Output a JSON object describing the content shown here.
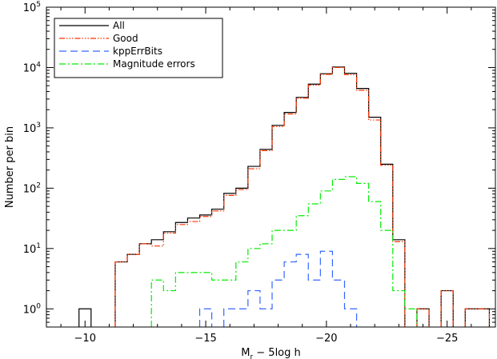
{
  "chart_data": {
    "type": "line",
    "step": true,
    "xlabel": {
      "main": "M",
      "sub": "r",
      "rest": " − 5log h"
    },
    "ylabel": "Number per bin",
    "log_y": true,
    "xlim": [
      -8.4,
      -27
    ],
    "ylim": [
      0.5,
      100000
    ],
    "x_reversed": true,
    "grid": false,
    "legend_position": "top-left",
    "x_tick_values": [
      -10,
      -15,
      -20,
      -25
    ],
    "x_tick_labels": [
      "−10",
      "−15",
      "−20",
      "−25"
    ],
    "y_tick_values": [
      1,
      10,
      100,
      1000,
      10000,
      100000
    ],
    "y_tick_labels": [
      {
        "base": "10",
        "exp": "0"
      },
      {
        "base": "10",
        "exp": "1"
      },
      {
        "base": "10",
        "exp": "2"
      },
      {
        "base": "10",
        "exp": "3"
      },
      {
        "base": "10",
        "exp": "4"
      },
      {
        "base": "10",
        "exp": "5"
      }
    ],
    "bin_width": 0.5,
    "series": [
      {
        "name": "All",
        "color": "#000000",
        "dash": "",
        "bins": [
          [
            -9.75,
            -10.25,
            1
          ],
          [
            -11.25,
            -11.75,
            6
          ],
          [
            -11.75,
            -12.25,
            8
          ],
          [
            -12.25,
            -12.75,
            12
          ],
          [
            -12.75,
            -13.25,
            14
          ],
          [
            -13.25,
            -13.75,
            19
          ],
          [
            -13.75,
            -14.25,
            27
          ],
          [
            -14.25,
            -14.75,
            32
          ],
          [
            -14.75,
            -15.25,
            36
          ],
          [
            -15.25,
            -15.75,
            45
          ],
          [
            -15.75,
            -16.25,
            82
          ],
          [
            -16.25,
            -16.75,
            100
          ],
          [
            -16.75,
            -17.25,
            230
          ],
          [
            -17.25,
            -17.75,
            440
          ],
          [
            -17.75,
            -18.25,
            1100
          ],
          [
            -18.25,
            -18.75,
            1800
          ],
          [
            -18.75,
            -19.25,
            3200
          ],
          [
            -19.25,
            -19.75,
            5300
          ],
          [
            -19.75,
            -20.25,
            7900
          ],
          [
            -20.25,
            -20.75,
            10200
          ],
          [
            -20.75,
            -21.25,
            8000
          ],
          [
            -21.25,
            -21.75,
            4500
          ],
          [
            -21.75,
            -22.25,
            1500
          ],
          [
            -22.25,
            -22.75,
            250
          ],
          [
            -22.75,
            -23.25,
            14
          ],
          [
            -23.75,
            -24.25,
            1
          ],
          [
            -24.75,
            -25.25,
            2
          ],
          [
            -25.75,
            -26.25,
            1
          ],
          [
            -26.25,
            -26.75,
            1
          ]
        ]
      },
      {
        "name": "Good",
        "color": "#ff3300",
        "dash": "7,2,1.5,2,1.5,2,1.5,2",
        "bins": [
          [
            -11.25,
            -11.75,
            6
          ],
          [
            -11.75,
            -12.25,
            8
          ],
          [
            -12.25,
            -12.75,
            12
          ],
          [
            -12.75,
            -13.25,
            11
          ],
          [
            -13.25,
            -13.75,
            18
          ],
          [
            -13.75,
            -14.25,
            25
          ],
          [
            -14.25,
            -14.75,
            28
          ],
          [
            -14.75,
            -15.25,
            34
          ],
          [
            -15.25,
            -15.75,
            42
          ],
          [
            -15.75,
            -16.25,
            76
          ],
          [
            -16.25,
            -16.75,
            95
          ],
          [
            -16.75,
            -17.25,
            210
          ],
          [
            -17.25,
            -17.75,
            420
          ],
          [
            -17.75,
            -18.25,
            1050
          ],
          [
            -18.25,
            -18.75,
            1700
          ],
          [
            -18.75,
            -19.25,
            3100
          ],
          [
            -19.25,
            -19.75,
            5100
          ],
          [
            -19.75,
            -20.25,
            7700
          ],
          [
            -20.25,
            -20.75,
            10000
          ],
          [
            -20.75,
            -21.25,
            7600
          ],
          [
            -21.25,
            -21.75,
            4200
          ],
          [
            -21.75,
            -22.25,
            1350
          ],
          [
            -22.25,
            -22.75,
            240
          ],
          [
            -22.75,
            -23.25,
            13
          ],
          [
            -23.75,
            -24.25,
            1
          ],
          [
            -24.75,
            -25.25,
            2
          ],
          [
            -25.75,
            -26.25,
            1
          ],
          [
            -26.25,
            -26.75,
            1
          ]
        ]
      },
      {
        "name": "kppErrBits",
        "color": "#3366ff",
        "dash": "9,5",
        "bins": [
          [
            -14.75,
            -15.25,
            1
          ],
          [
            -15.75,
            -16.25,
            1
          ],
          [
            -16.25,
            -16.75,
            1
          ],
          [
            -16.75,
            -17.25,
            2
          ],
          [
            -17.25,
            -17.75,
            1
          ],
          [
            -17.75,
            -18.25,
            3
          ],
          [
            -18.25,
            -18.75,
            6
          ],
          [
            -18.75,
            -19.25,
            8
          ],
          [
            -19.25,
            -19.75,
            3
          ],
          [
            -19.75,
            -20.25,
            9
          ],
          [
            -20.25,
            -20.75,
            3
          ],
          [
            -20.75,
            -21.25,
            1
          ]
        ]
      },
      {
        "name": "Magnitude errors",
        "color": "#00ee00",
        "dash": "8,3,2,3",
        "bins": [
          [
            -12.75,
            -13.25,
            3
          ],
          [
            -13.25,
            -13.75,
            2
          ],
          [
            -13.75,
            -14.25,
            4
          ],
          [
            -14.25,
            -14.75,
            4
          ],
          [
            -14.75,
            -15.25,
            4
          ],
          [
            -15.25,
            -15.75,
            3
          ],
          [
            -15.75,
            -16.25,
            3
          ],
          [
            -16.25,
            -16.75,
            6
          ],
          [
            -16.75,
            -17.25,
            10
          ],
          [
            -17.25,
            -17.75,
            12
          ],
          [
            -17.75,
            -18.25,
            20
          ],
          [
            -18.25,
            -18.75,
            20
          ],
          [
            -18.75,
            -19.25,
            35
          ],
          [
            -19.25,
            -19.75,
            55
          ],
          [
            -19.75,
            -20.25,
            90
          ],
          [
            -20.25,
            -20.75,
            140
          ],
          [
            -20.75,
            -21.25,
            155
          ],
          [
            -21.25,
            -21.75,
            120
          ],
          [
            -21.75,
            -22.25,
            60
          ],
          [
            -22.25,
            -22.75,
            20
          ],
          [
            -22.75,
            -23.25,
            2
          ],
          [
            -23.25,
            -23.75,
            1
          ]
        ]
      }
    ]
  }
}
